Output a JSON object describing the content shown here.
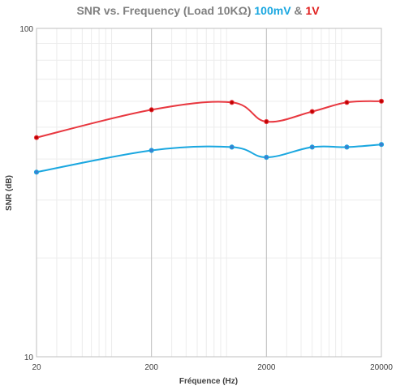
{
  "chart_data": {
    "type": "line",
    "title": {
      "main": "SNR vs. Frequency (Load 10KΩ) ",
      "series1": "100mV",
      "sep": " & ",
      "series2": "1V"
    },
    "xlabel": "Fréquence (Hz)",
    "ylabel": "SNR (dB)",
    "x_scale": "log",
    "y_scale": "log",
    "xlim": [
      20,
      20000
    ],
    "ylim": [
      10,
      100
    ],
    "x_ticks": [
      "20",
      "200",
      "2000",
      "20000"
    ],
    "y_ticks": [
      "10",
      "100"
    ],
    "grid": true,
    "legend": "none",
    "series": [
      {
        "name": "100mV",
        "color": "#1aa7e0",
        "marker_color": "#3c7fd0",
        "x": [
          20,
          200,
          1000,
          2000,
          5000,
          10000,
          20000
        ],
        "y": [
          36.5,
          42.5,
          43.5,
          40.5,
          43.5,
          43.5,
          44.3
        ]
      },
      {
        "name": "1V",
        "color": "#e8373f",
        "marker_color": "#c00000",
        "x": [
          20,
          200,
          1000,
          2000,
          5000,
          10000,
          20000
        ],
        "y": [
          46.5,
          56.5,
          59.5,
          52.0,
          55.8,
          59.5,
          60.0
        ]
      }
    ]
  }
}
